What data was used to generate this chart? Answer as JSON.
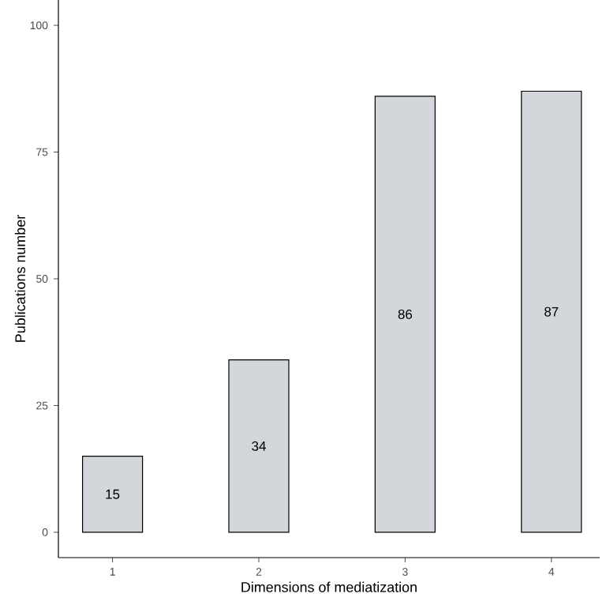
{
  "chart_data": {
    "type": "bar",
    "xlabel": "Dimensions of mediatization",
    "ylabel": "Publications number",
    "categories": [
      "1",
      "2",
      "3",
      "4"
    ],
    "values": [
      15,
      34,
      86,
      87
    ],
    "color": "#d3d6da",
    "ylim": [
      -5,
      105
    ],
    "yticks": [
      0,
      25,
      50,
      75,
      100
    ],
    "grid": false,
    "data_labels": true
  }
}
